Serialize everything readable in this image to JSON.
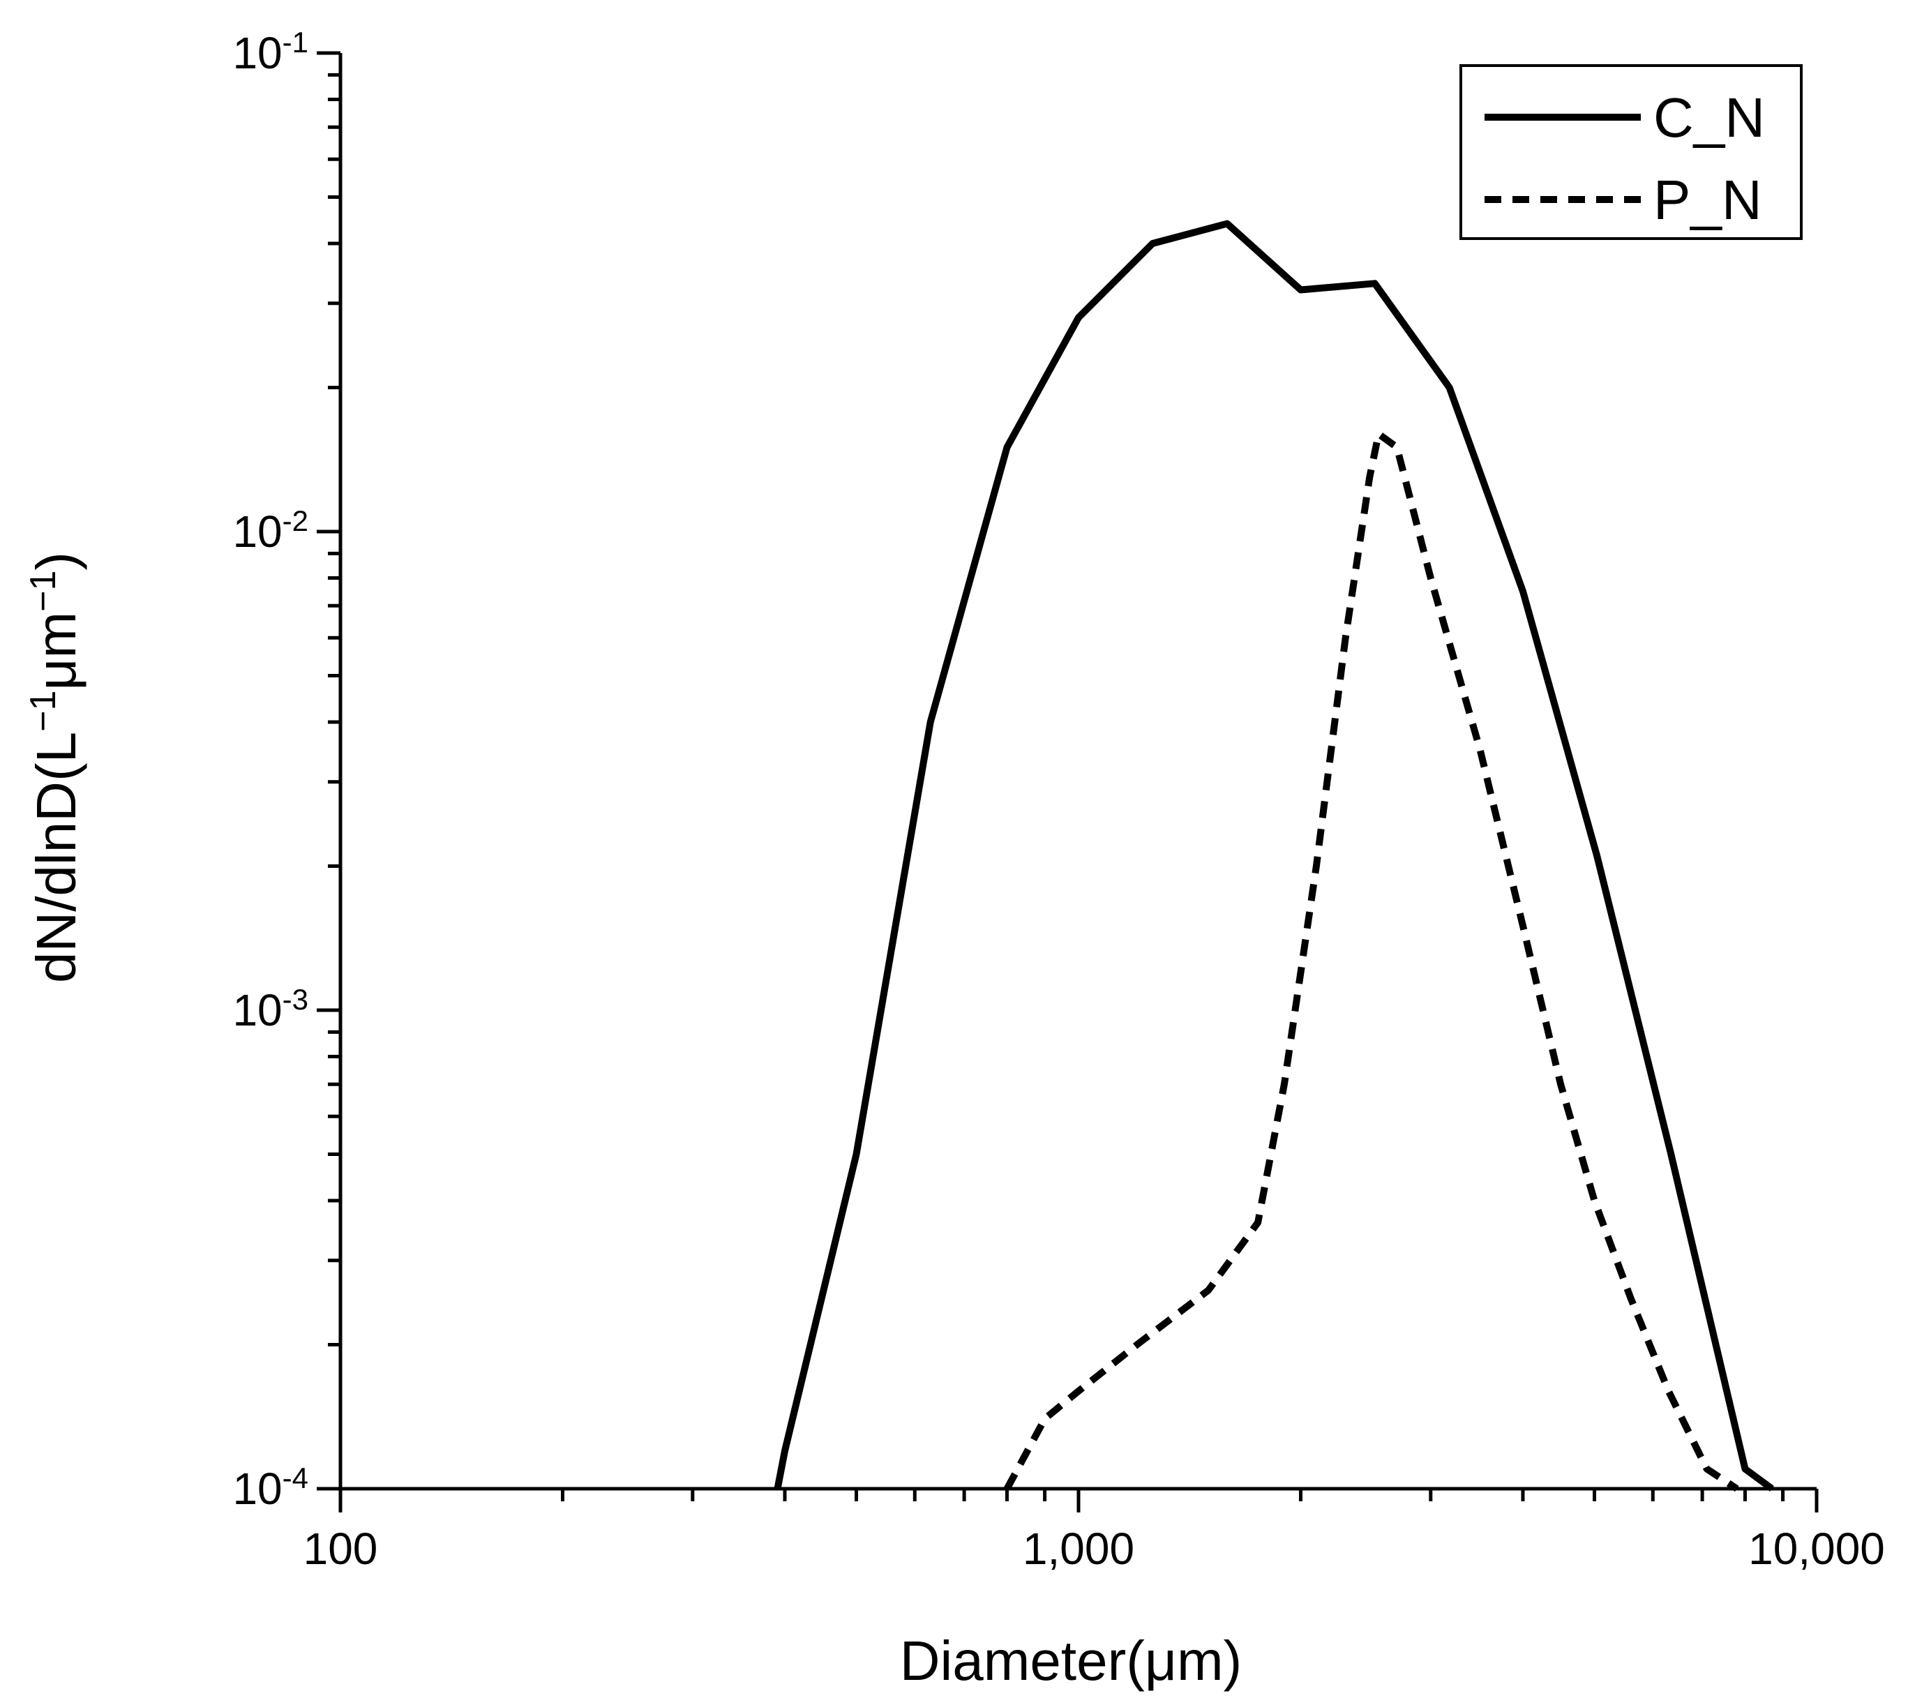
{
  "chart_data": {
    "type": "line",
    "title": "",
    "xlabel": "Diameter(μm)",
    "ylabel_parts": {
      "main": "dN/dlnD(L",
      "exp1": "−1",
      "mid": "μm",
      "exp2": "−1",
      "close": ")"
    },
    "x_scale": "log",
    "y_scale": "log",
    "xlim": [
      100,
      10000
    ],
    "ylim": [
      0.0001,
      0.1
    ],
    "x_ticks": [
      100,
      1000,
      10000
    ],
    "x_tick_labels": [
      "100",
      "1,000",
      "10,000"
    ],
    "y_ticks": [
      0.0001,
      0.001,
      0.01,
      0.1
    ],
    "y_tick_labels": [
      {
        "base": "10",
        "exp": "-4"
      },
      {
        "base": "10",
        "exp": "-3"
      },
      {
        "base": "10",
        "exp": "-2"
      },
      {
        "base": "10",
        "exp": "-1"
      }
    ],
    "grid": false,
    "legend_position": "top-right",
    "series": [
      {
        "name": "C_N",
        "style": "solid",
        "color": "#000000",
        "x": [
          391,
          400,
          500,
          630,
          800,
          1000,
          1260,
          1590,
          2000,
          2520,
          3180,
          4000,
          5040,
          6350,
          8000,
          8700
        ],
        "y": [
          0.0001,
          0.00012,
          0.0005,
          0.004,
          0.015,
          0.028,
          0.04,
          0.044,
          0.032,
          0.033,
          0.02,
          0.0075,
          0.0021,
          0.0005,
          0.00011,
          0.0001
        ]
      },
      {
        "name": "P_N",
        "style": "dashed",
        "color": "#000000",
        "x": [
          800,
          900,
          1000,
          1200,
          1500,
          1750,
          1900,
          2100,
          2300,
          2480,
          2550,
          2700,
          3000,
          3500,
          4000,
          4500,
          5000,
          5600,
          6300,
          7100,
          7800
        ],
        "y": [
          0.0001,
          0.00014,
          0.00016,
          0.0002,
          0.00026,
          0.00036,
          0.0007,
          0.002,
          0.006,
          0.013,
          0.016,
          0.015,
          0.008,
          0.0035,
          0.0015,
          0.0007,
          0.0004,
          0.00025,
          0.00016,
          0.00011,
          0.0001
        ]
      }
    ]
  }
}
